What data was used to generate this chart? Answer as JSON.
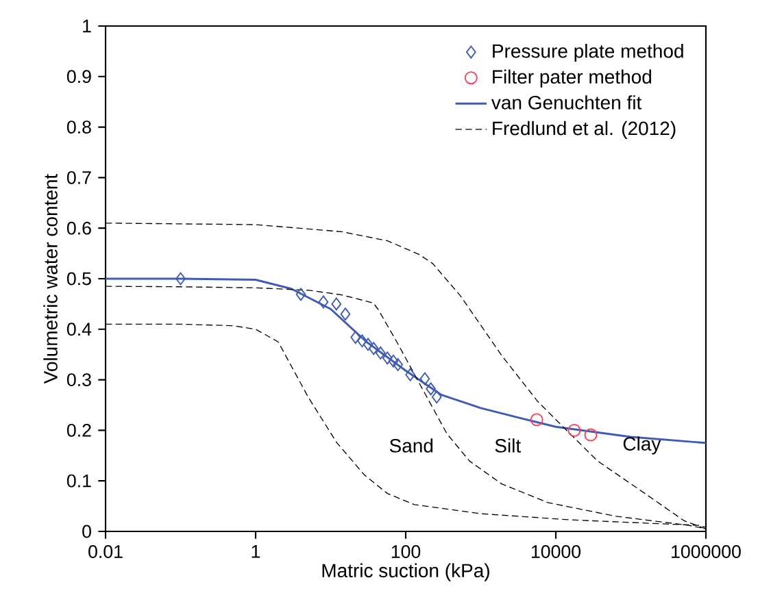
{
  "chart_data": {
    "type": "line",
    "xlabel": "Matric suction (kPa)",
    "ylabel": "Volumetric water content",
    "log": "x",
    "xlim": [
      0.01,
      1000000
    ],
    "xticks": [
      0.01,
      1,
      100,
      10000,
      1000000
    ],
    "ylim": [
      0,
      1
    ],
    "yticks": [
      0,
      0.1,
      0.2,
      0.3,
      0.4,
      0.5,
      0.6,
      0.7,
      0.8,
      0.9,
      1
    ],
    "legend": "top right",
    "series": [
      {
        "name": "Pressure plate method",
        "type": "scatter",
        "marker": "diamond",
        "color": "#3f5bb5",
        "x": [
          0.1,
          4.0,
          8.0,
          11.9,
          15.7,
          21.4,
          26.3,
          31.5,
          37.4,
          46.2,
          57,
          68.5,
          78.7,
          115,
          180,
          216,
          259
        ],
        "values": [
          0.5,
          0.469,
          0.454,
          0.45,
          0.43,
          0.384,
          0.377,
          0.37,
          0.362,
          0.353,
          0.343,
          0.337,
          0.33,
          0.31,
          0.302,
          0.282,
          0.266
        ]
      },
      {
        "name": "Filter pater method",
        "type": "scatter",
        "marker": "circle",
        "color": "#ff3b4f",
        "x": [
          5570,
          17600,
          29200
        ],
        "values": [
          0.221,
          0.2,
          0.191
        ]
      },
      {
        "name": "van Genuchten fit",
        "marker": "none",
        "line_style": "solid",
        "color": "#3f5bb5",
        "x": [
          0.01,
          0.1,
          1,
          3,
          10,
          30,
          100,
          300,
          1000,
          3000,
          10000,
          100000,
          1000000
        ],
        "values": [
          0.5,
          0.5,
          0.498,
          0.48,
          0.44,
          0.375,
          0.318,
          0.27,
          0.244,
          0.226,
          0.207,
          0.187,
          0.175
        ]
      },
      {
        "name": "Fredlund et al. (2012)",
        "marker": "none",
        "line_style": "dashed",
        "color": "#000000",
        "x": [
          0.01,
          0.1,
          0.5,
          1,
          2,
          5,
          12,
          28,
          57,
          130,
          1000,
          15000,
          260000,
          800000,
          1000000
        ],
        "values": [
          0.41,
          0.41,
          0.407,
          0.4,
          0.375,
          0.266,
          0.176,
          0.112,
          0.075,
          0.053,
          0.035,
          0.023,
          0.015,
          0.012,
          0.008
        ]
      },
      {
        "marker": "none",
        "line_style": "dashed",
        "color": "#000000",
        "x": [
          0.01,
          0.1,
          1,
          5.2,
          14,
          37,
          43,
          76,
          152,
          355,
          710,
          1900,
          7800,
          63000,
          590000,
          1000000
        ],
        "values": [
          0.485,
          0.484,
          0.482,
          0.477,
          0.468,
          0.452,
          0.439,
          0.375,
          0.293,
          0.193,
          0.139,
          0.094,
          0.057,
          0.03,
          0.012,
          0.005
        ]
      },
      {
        "marker": "none",
        "line_style": "dashed",
        "color": "#000000",
        "x": [
          0.01,
          1,
          14,
          57,
          151,
          229,
          537,
          1900,
          5750,
          15500,
          36300,
          126000,
          513000,
          1000000
        ],
        "values": [
          0.61,
          0.607,
          0.593,
          0.575,
          0.548,
          0.53,
          0.466,
          0.348,
          0.257,
          0.193,
          0.139,
          0.084,
          0.021,
          0.005
        ]
      }
    ],
    "annotations": [
      "Sand",
      "Silt",
      "Clay"
    ]
  }
}
